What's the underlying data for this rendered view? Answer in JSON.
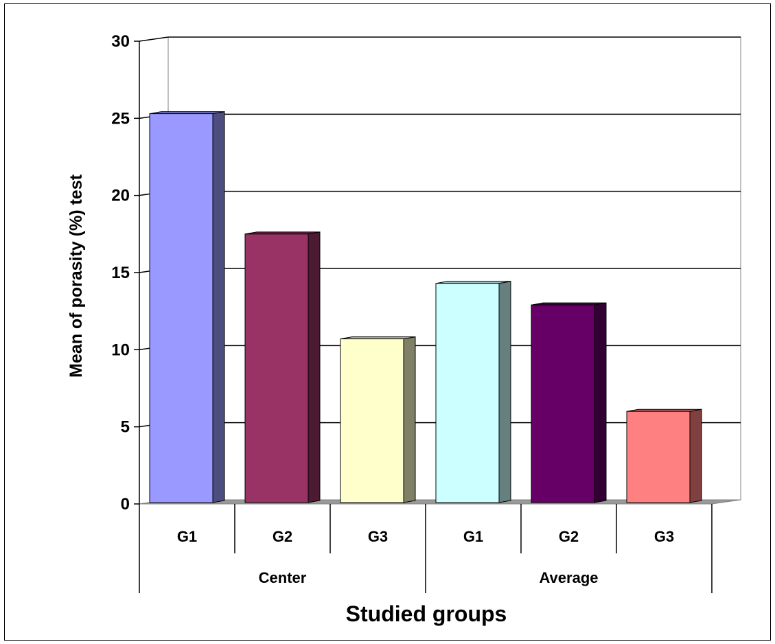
{
  "chart_data": {
    "type": "bar",
    "style": "3d-clustered-column",
    "xlabel": "Studied groups",
    "ylabel": "Mean of porasity (%) test",
    "ylim": [
      0,
      30
    ],
    "yticks": [
      0,
      5,
      10,
      15,
      20,
      25,
      30
    ],
    "grid": true,
    "legend": "none",
    "groups": [
      {
        "label": "Center",
        "categories": [
          "G1",
          "G2",
          "G3"
        ]
      },
      {
        "label": "Average",
        "categories": [
          "G1",
          "G2",
          "G3"
        ]
      }
    ],
    "bars": [
      {
        "group": "Center",
        "category": "G1",
        "value": 25.3,
        "color": "#9999ff"
      },
      {
        "group": "Center",
        "category": "G2",
        "value": 17.5,
        "color": "#993366"
      },
      {
        "group": "Center",
        "category": "G3",
        "value": 10.7,
        "color": "#ffffcc"
      },
      {
        "group": "Average",
        "category": "G1",
        "value": 14.3,
        "color": "#ccffff"
      },
      {
        "group": "Average",
        "category": "G2",
        "value": 12.9,
        "color": "#660066"
      },
      {
        "group": "Average",
        "category": "G3",
        "value": 6.0,
        "color": "#ff8080"
      }
    ]
  }
}
